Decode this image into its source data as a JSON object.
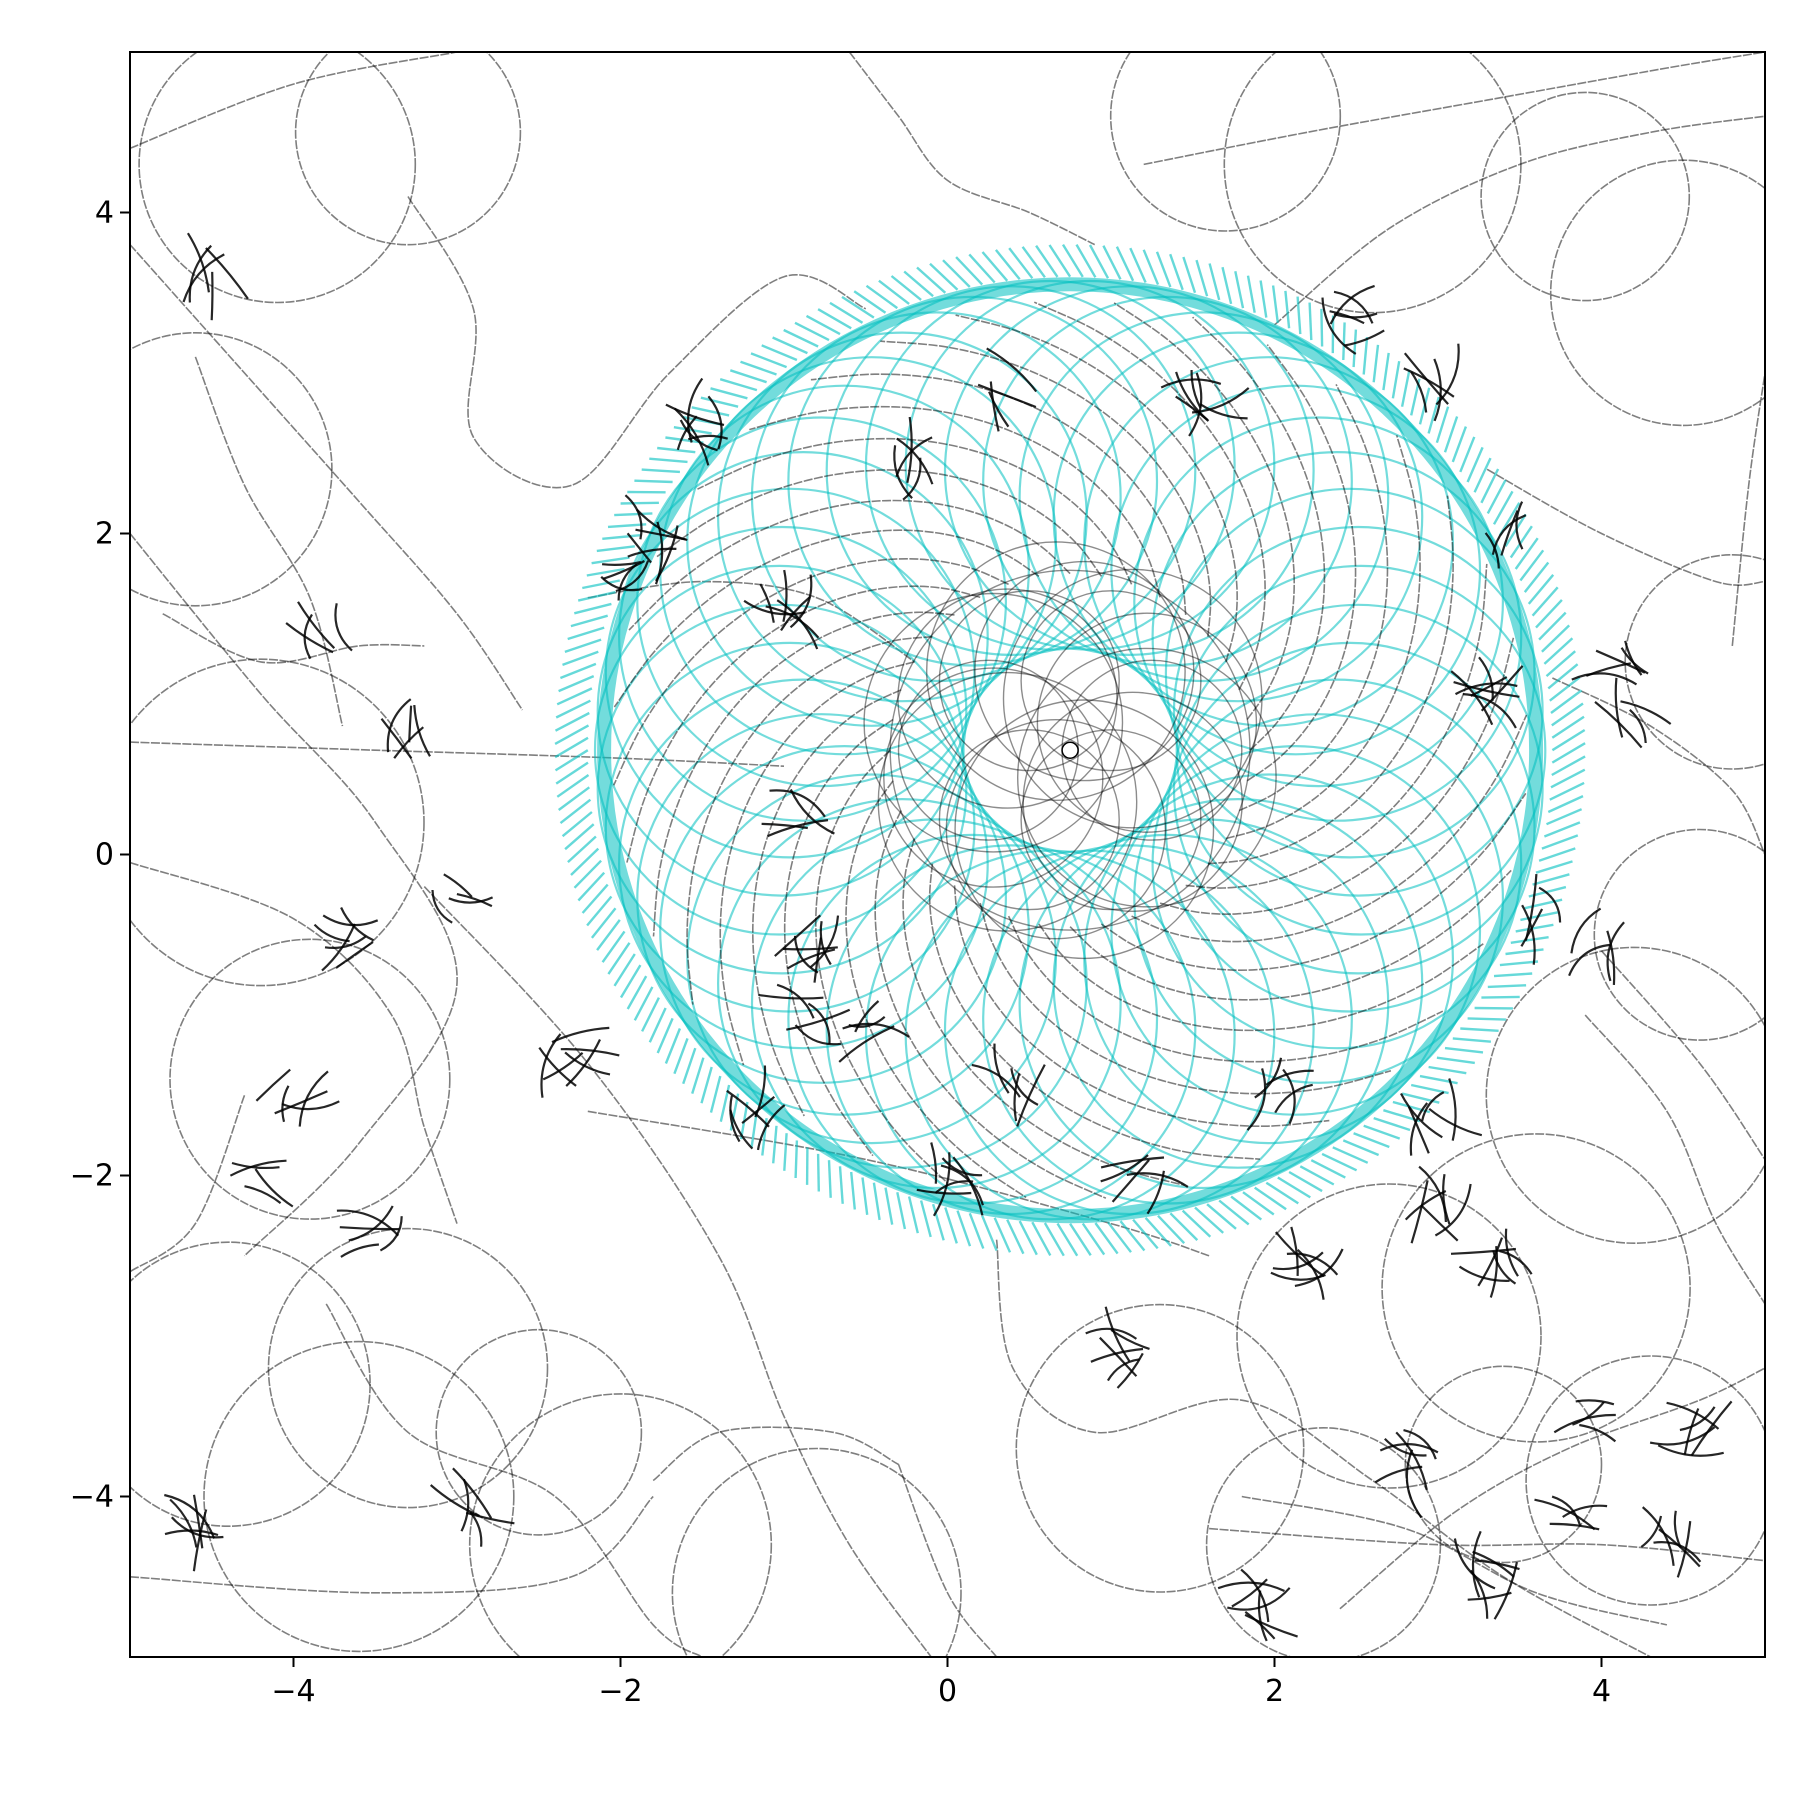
{
  "chart_data": {
    "type": "line",
    "title": "",
    "xlabel": "",
    "ylabel": "",
    "xlim": [
      -5,
      5
    ],
    "ylim": [
      -5,
      5
    ],
    "xticks": [
      -4,
      -2,
      0,
      2,
      4
    ],
    "yticks": [
      -4,
      -2,
      0,
      2,
      4
    ],
    "grid": false,
    "legend": "none",
    "colors": {
      "background_traj": "#000000",
      "vortex": "#00bfbf"
    },
    "vortex": {
      "center": [
        0.75,
        0.65
      ],
      "outer_radius": 3.0,
      "inner_radius": 1.1
    },
    "series": [
      {
        "type": "trajectories",
        "color": "#000000",
        "curves": [
          {
            "points": [
              [
                -3.3,
                4.1
              ],
              [
                -2.9,
                3.4
              ],
              [
                -2.9,
                2.6
              ],
              [
                -2.3,
                2.3
              ],
              [
                -1.7,
                3.0
              ],
              [
                -1.0,
                3.6
              ],
              [
                -0.5,
                3.4
              ]
            ]
          },
          {
            "points": [
              [
                -5.0,
                2.0
              ],
              [
                -4.2,
                1.0
              ],
              [
                -3.5,
                0.2
              ],
              [
                -3.0,
                -0.8
              ],
              [
                -3.6,
                -1.8
              ],
              [
                -4.3,
                -2.5
              ]
            ]
          },
          {
            "points": [
              [
                -5.0,
                4.4
              ],
              [
                -4.0,
                4.8
              ],
              [
                -3.0,
                5.0
              ]
            ]
          },
          {
            "points": [
              [
                -5.0,
                3.8
              ],
              [
                -4.3,
                3.0
              ],
              [
                -3.6,
                2.2
              ],
              [
                -3.0,
                1.5
              ],
              [
                -2.6,
                0.9
              ]
            ]
          },
          {
            "points": [
              [
                -4.6,
                3.1
              ],
              [
                -4.3,
                2.3
              ],
              [
                -3.9,
                1.6
              ],
              [
                -3.7,
                0.8
              ]
            ]
          },
          {
            "points": [
              [
                -5.0,
                0.7
              ],
              [
                -3.5,
                0.65
              ],
              [
                -2.0,
                0.6
              ],
              [
                -1.0,
                0.55
              ]
            ]
          },
          {
            "points": [
              [
                -5.0,
                -0.05
              ],
              [
                -4.0,
                -0.4
              ],
              [
                -3.4,
                -1.0
              ],
              [
                -3.2,
                -1.7
              ],
              [
                -3.0,
                -2.3
              ]
            ]
          },
          {
            "points": [
              [
                -2.2,
                -1.6
              ],
              [
                -0.5,
                -1.9
              ],
              [
                1.0,
                -2.3
              ],
              [
                1.6,
                -2.5
              ]
            ]
          },
          {
            "points": [
              [
                -3.2,
                -0.2
              ],
              [
                -2.2,
                -1.3
              ],
              [
                -1.4,
                -2.5
              ],
              [
                -1.0,
                -3.5
              ],
              [
                -0.6,
                -4.3
              ],
              [
                -0.1,
                -5.0
              ]
            ]
          },
          {
            "points": [
              [
                -5.0,
                -4.5
              ],
              [
                -3.5,
                -4.6
              ],
              [
                -2.3,
                -4.5
              ],
              [
                -1.8,
                -4.0
              ]
            ]
          },
          {
            "points": [
              [
                -3.8,
                -2.8
              ],
              [
                -3.3,
                -3.6
              ],
              [
                -2.4,
                -4.0
              ],
              [
                -1.8,
                -4.8
              ],
              [
                -1.5,
                -5.0
              ]
            ]
          },
          {
            "points": [
              [
                -1.8,
                -3.9
              ],
              [
                -1.4,
                -3.6
              ],
              [
                -0.7,
                -3.6
              ],
              [
                -0.3,
                -3.8
              ]
            ]
          },
          {
            "points": [
              [
                -0.3,
                -3.8
              ],
              [
                0.0,
                -4.6
              ],
              [
                0.3,
                -5.0
              ]
            ]
          },
          {
            "points": [
              [
                0.3,
                -2.4
              ],
              [
                0.4,
                -3.2
              ],
              [
                0.9,
                -3.6
              ],
              [
                1.8,
                -3.4
              ],
              [
                2.6,
                -3.9
              ],
              [
                3.4,
                -4.5
              ],
              [
                4.3,
                -5.0
              ]
            ]
          },
          {
            "points": [
              [
                1.8,
                -4.0
              ],
              [
                2.8,
                -4.2
              ],
              [
                3.6,
                -4.6
              ],
              [
                4.4,
                -4.8
              ]
            ]
          },
          {
            "points": [
              [
                1.6,
                -4.2
              ],
              [
                3.0,
                -4.3
              ],
              [
                4.0,
                -4.3
              ],
              [
                5.0,
                -4.4
              ]
            ]
          },
          {
            "points": [
              [
                2.4,
                -4.7
              ],
              [
                3.1,
                -4.1
              ],
              [
                3.8,
                -3.7
              ],
              [
                4.6,
                -3.4
              ],
              [
                5.0,
                -3.2
              ]
            ]
          },
          {
            "points": [
              [
                3.3,
                2.4
              ],
              [
                4.0,
                2.0
              ],
              [
                4.7,
                1.7
              ],
              [
                5.0,
                1.7
              ]
            ]
          },
          {
            "points": [
              [
                3.7,
                1.1
              ],
              [
                4.3,
                0.8
              ],
              [
                4.8,
                0.4
              ],
              [
                5.0,
                0.0
              ]
            ]
          },
          {
            "points": [
              [
                4.0,
                -0.6
              ],
              [
                4.6,
                -1.3
              ],
              [
                5.0,
                -1.9
              ]
            ]
          },
          {
            "points": [
              [
                1.2,
                4.3
              ],
              [
                2.2,
                4.5
              ],
              [
                3.3,
                4.7
              ],
              [
                4.4,
                4.9
              ],
              [
                5.0,
                5.0
              ]
            ]
          },
          {
            "points": [
              [
                2.0,
                3.3
              ],
              [
                2.7,
                3.9
              ],
              [
                3.5,
                4.3
              ],
              [
                4.3,
                4.5
              ],
              [
                5.0,
                4.6
              ]
            ]
          },
          {
            "points": [
              [
                -0.6,
                5.0
              ],
              [
                -0.3,
                4.6
              ],
              [
                0.0,
                4.2
              ],
              [
                0.5,
                4.0
              ],
              [
                0.9,
                3.8
              ]
            ]
          },
          {
            "points": [
              [
                -2.2,
                1.6
              ],
              [
                -1.5,
                1.7
              ],
              [
                -0.8,
                1.6
              ],
              [
                -0.2,
                1.2
              ]
            ]
          },
          {
            "points": [
              [
                -4.8,
                1.5
              ],
              [
                -4.2,
                1.2
              ],
              [
                -3.6,
                1.3
              ],
              [
                -3.2,
                1.3
              ]
            ]
          },
          {
            "points": [
              [
                -4.3,
                -1.5
              ],
              [
                -4.6,
                -2.3
              ],
              [
                -5.0,
                -2.6
              ]
            ]
          },
          {
            "points": [
              [
                3.9,
                -1.0
              ],
              [
                4.4,
                -1.6
              ],
              [
                4.7,
                -2.3
              ],
              [
                5.0,
                -2.8
              ]
            ]
          },
          {
            "points": [
              [
                4.8,
                1.3
              ],
              [
                4.9,
                2.3
              ],
              [
                5.0,
                3.0
              ]
            ]
          }
        ]
      },
      {
        "type": "dash_clusters",
        "color": "#000000",
        "centers": [
          [
            -4.5,
            3.6
          ],
          [
            -3.8,
            1.4
          ],
          [
            -3.3,
            0.8
          ],
          [
            -3.7,
            -0.5
          ],
          [
            -4.0,
            -1.5
          ],
          [
            -4.2,
            -2.0
          ],
          [
            -3.5,
            -2.4
          ],
          [
            -0.8,
            -0.6
          ],
          [
            -0.9,
            -1.0
          ],
          [
            -0.3,
            2.4
          ],
          [
            -1.0,
            1.5
          ],
          [
            -0.9,
            0.2
          ],
          [
            -1.8,
            2.0
          ],
          [
            0.4,
            2.9
          ],
          [
            1.6,
            2.8
          ],
          [
            2.5,
            3.3
          ],
          [
            3.4,
            2.0
          ],
          [
            3.3,
            1.0
          ],
          [
            3.6,
            -0.4
          ],
          [
            3.0,
            -1.6
          ],
          [
            2.0,
            -1.5
          ],
          [
            1.2,
            -2.0
          ],
          [
            0.0,
            -2.0
          ],
          [
            -1.2,
            -1.6
          ],
          [
            -2.3,
            -1.2
          ],
          [
            -2.0,
            1.8
          ],
          [
            -1.5,
            2.7
          ],
          [
            3.0,
            3.0
          ],
          [
            3.4,
            -2.6
          ],
          [
            4.1,
            1.1
          ],
          [
            4.2,
            0.8
          ],
          [
            4.0,
            -0.6
          ],
          [
            3.9,
            -3.5
          ],
          [
            3.8,
            -4.1
          ],
          [
            3.3,
            -4.5
          ],
          [
            4.4,
            -4.3
          ],
          [
            2.8,
            -3.8
          ],
          [
            2.2,
            -2.5
          ],
          [
            1.0,
            -3.1
          ],
          [
            -2.9,
            -4.1
          ],
          [
            -4.6,
            -4.2
          ],
          [
            1.9,
            -4.7
          ],
          [
            -3.0,
            -0.3
          ],
          [
            0.4,
            -1.4
          ],
          [
            3.0,
            -2.2
          ],
          [
            4.6,
            -3.6
          ],
          [
            -0.5,
            -1.1
          ]
        ]
      },
      {
        "type": "vortex_rings",
        "color": "#00bfbf",
        "count": 46
      }
    ]
  }
}
